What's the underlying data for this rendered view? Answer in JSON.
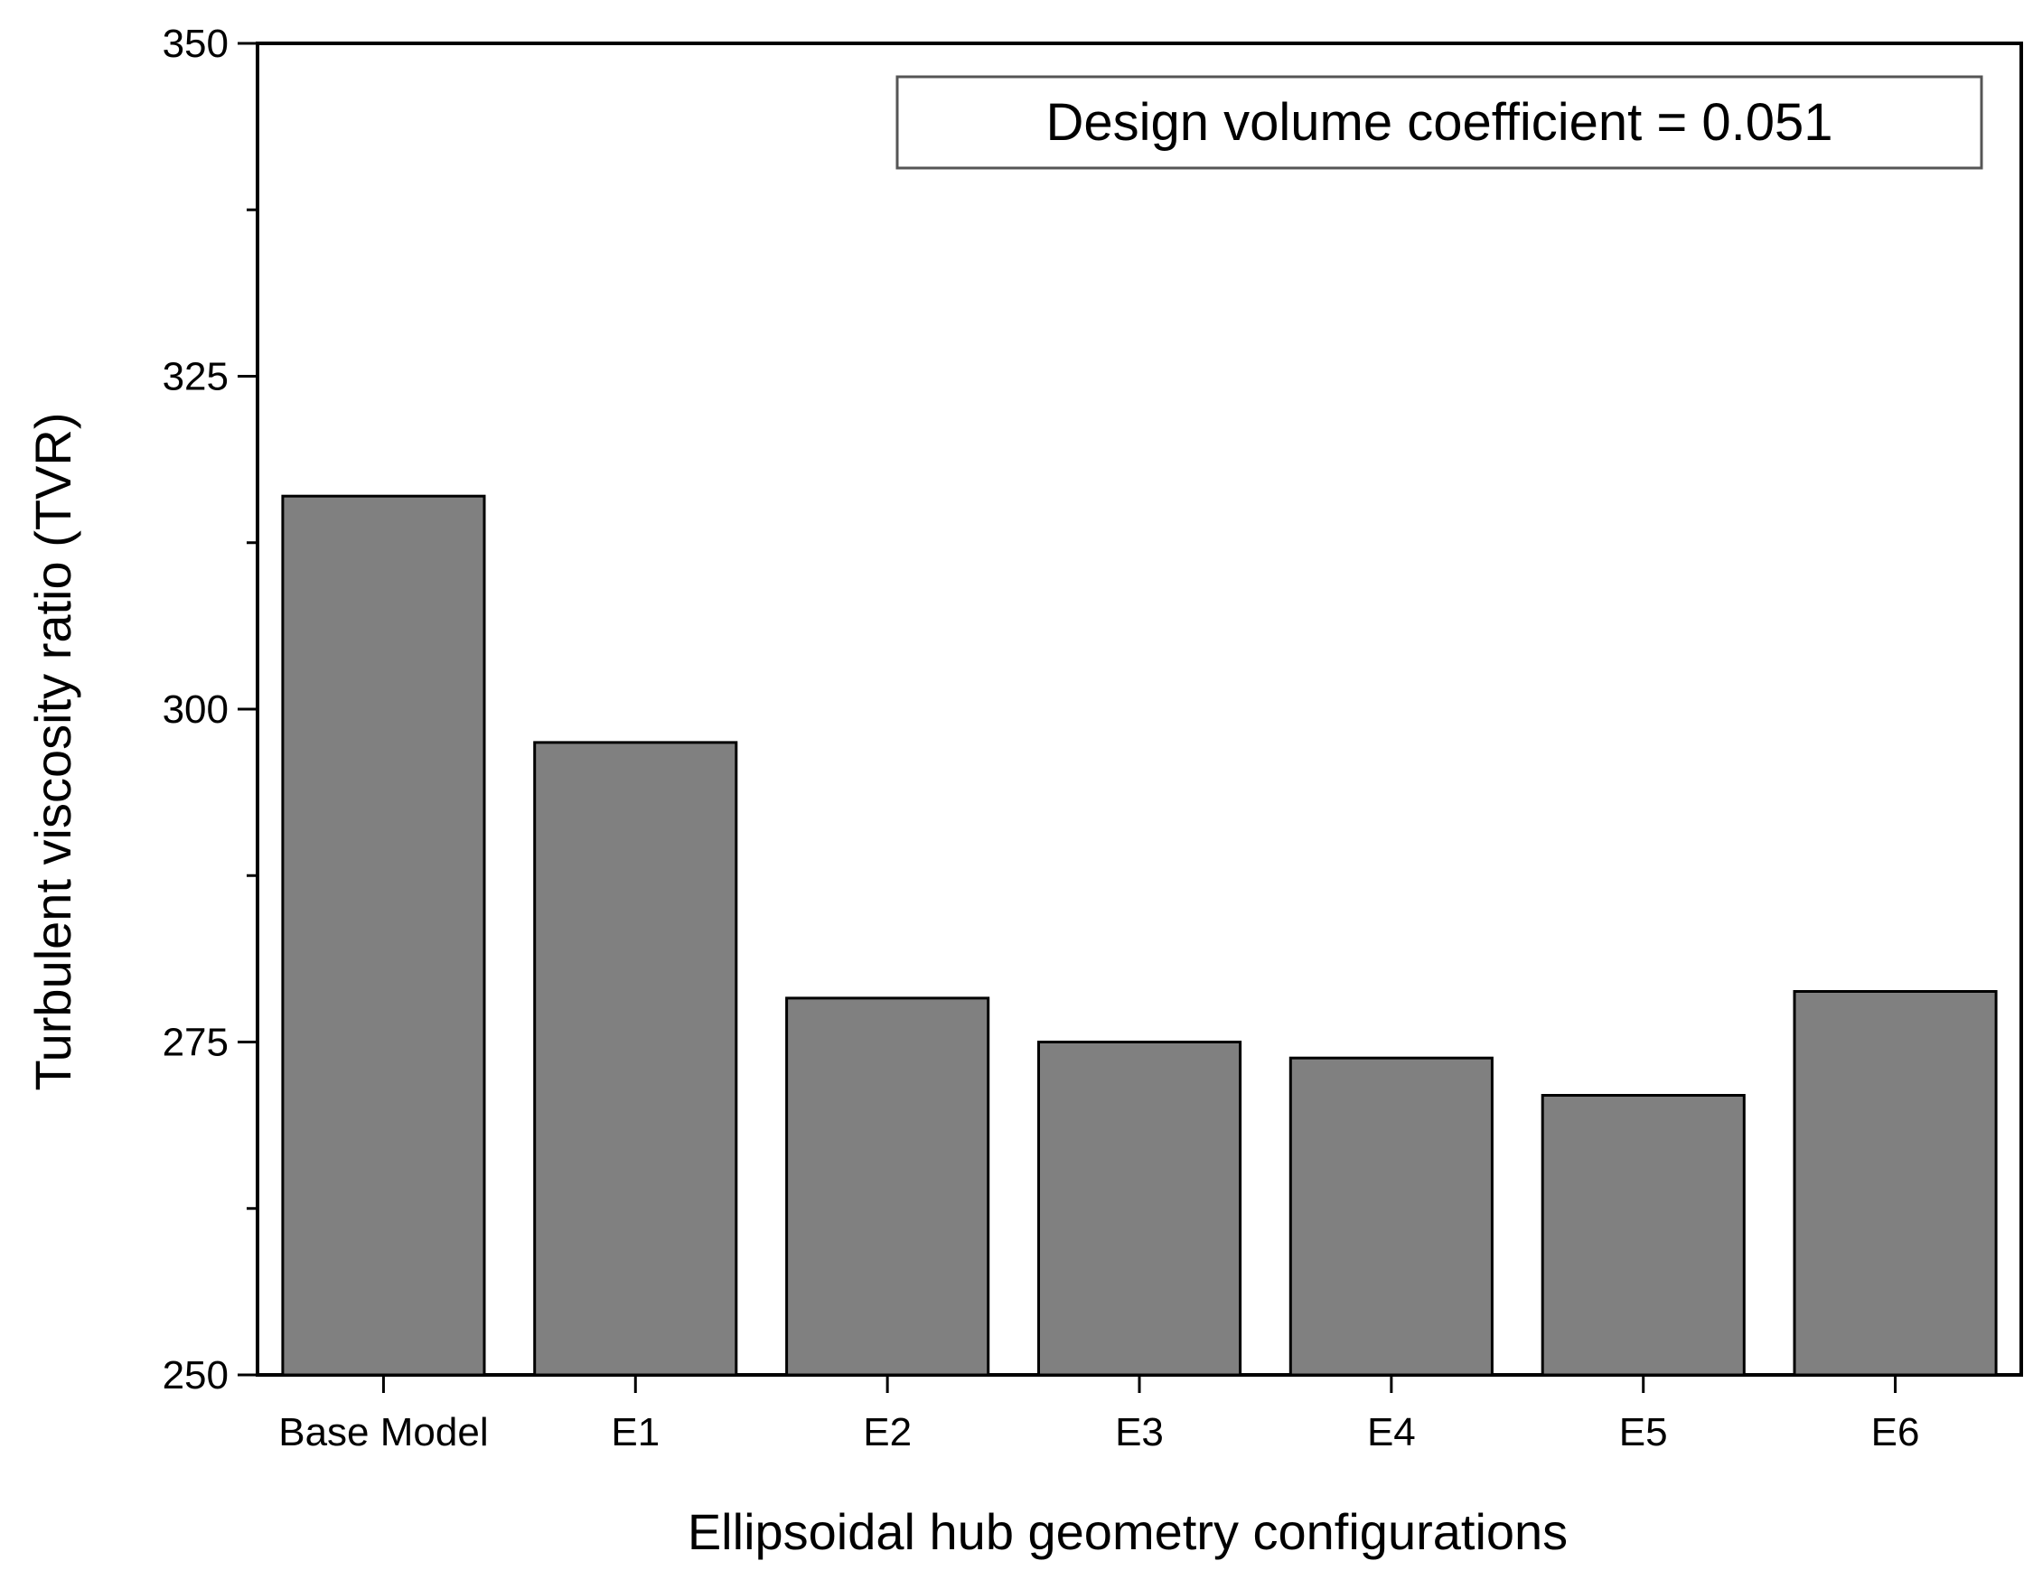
{
  "chart_data": {
    "type": "bar",
    "categories": [
      "Base Model",
      "E1",
      "E2",
      "E3",
      "E4",
      "E5",
      "E6"
    ],
    "values": [
      316,
      297.5,
      278.3,
      275,
      273.8,
      271,
      278.8
    ],
    "title": "",
    "xlabel": "Ellipsoidal hub geometry configurations",
    "ylabel": "Turbulent viscosity ratio (TVR)",
    "ylim": [
      250,
      350
    ],
    "yticks": [
      250,
      275,
      300,
      325,
      350
    ],
    "yticks_minor_step": 12.5,
    "grid": false,
    "bar_color": "#808080",
    "bar_edge_color": "#000000",
    "annotation": "Design volume coefficient = 0.051",
    "annotation_position": "top-right"
  }
}
